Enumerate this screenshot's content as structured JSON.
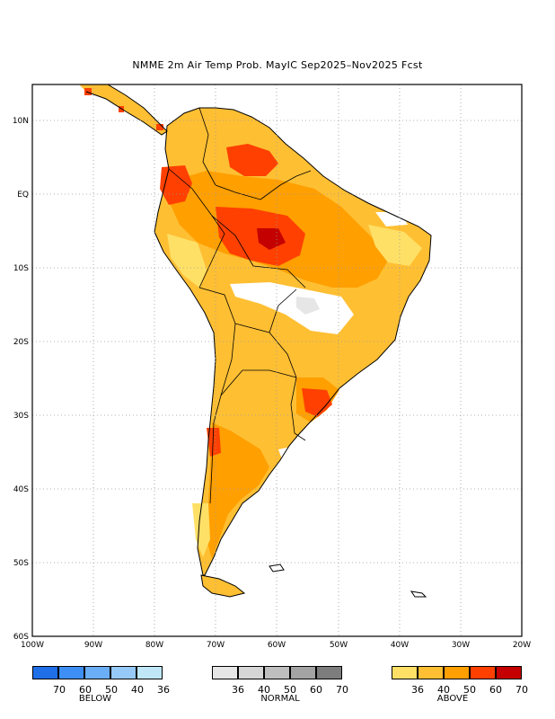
{
  "title": "NMME 2m Air Temp Prob. MayIC  Sep2025–Nov2025 Fcst",
  "map": {
    "lon_range": [
      -100,
      -20
    ],
    "lat_range": [
      -60,
      15
    ],
    "lat_ticks": [
      {
        "lat": 10,
        "label": "10N"
      },
      {
        "lat": 0,
        "label": "EQ"
      },
      {
        "lat": -10,
        "label": "10S"
      },
      {
        "lat": -20,
        "label": "20S"
      },
      {
        "lat": -30,
        "label": "30S"
      },
      {
        "lat": -40,
        "label": "40S"
      },
      {
        "lat": -50,
        "label": "50S"
      },
      {
        "lat": -60,
        "label": "60S"
      }
    ],
    "lon_ticks": [
      {
        "lon": -100,
        "label": "100W"
      },
      {
        "lon": -90,
        "label": "90W"
      },
      {
        "lon": -80,
        "label": "80W"
      },
      {
        "lon": -70,
        "label": "70W"
      },
      {
        "lon": -60,
        "label": "60W"
      },
      {
        "lon": -50,
        "label": "50W"
      },
      {
        "lon": -40,
        "label": "40W"
      },
      {
        "lon": -30,
        "label": "30W"
      },
      {
        "lon": -20,
        "label": "20W"
      }
    ],
    "grid": "dotted"
  },
  "legend": {
    "below": {
      "caption": "BELOW",
      "colors": [
        "#1f6fe8",
        "#3d8ff5",
        "#6aaef7",
        "#96c9f7",
        "#bfe7f7"
      ],
      "labels": [
        "70",
        "60",
        "50",
        "40",
        "36"
      ]
    },
    "normal": {
      "caption": "NORMAL",
      "colors": [
        "#e6e6e6",
        "#d6d6d6",
        "#bfbfbf",
        "#a3a3a3",
        "#7d7d7d"
      ],
      "labels": [
        "36",
        "40",
        "50",
        "60",
        "70"
      ]
    },
    "above": {
      "caption": "ABOVE",
      "colors": [
        "#ffe066",
        "#ffbf33",
        "#ff9f00",
        "#ff4000",
        "#c40000"
      ],
      "labels": [
        "36",
        "40",
        "50",
        "60",
        "70"
      ]
    }
  }
}
